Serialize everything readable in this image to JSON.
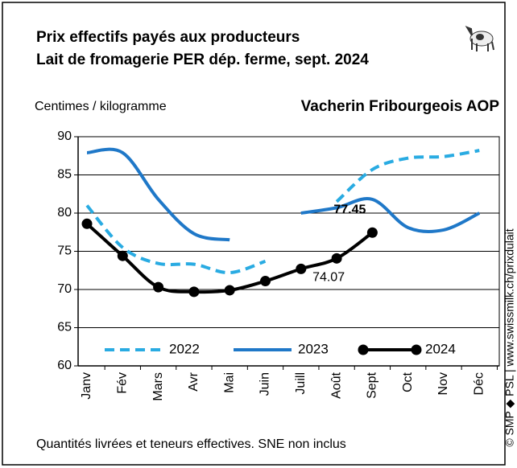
{
  "chart_data": {
    "type": "line",
    "title": [
      "Prix effectifs payés aux producteurs",
      "Lait de fromagerie PER dép. ferme, sept. 2024"
    ],
    "subtitle": "Vacherin Fribourgeois AOP",
    "y_label": "Centimes / kilogramme",
    "footnote": "Quantités livrées et teneurs effectives. SNE non inclus",
    "source": "© SMP ◆ PSL | www.swissmilk.ch/prixdulait",
    "categories": [
      "Janv",
      "Fév",
      "Mars",
      "Avr",
      "Mai",
      "Juin",
      "Juill",
      "Août",
      "Sept",
      "Oct",
      "Nov",
      "Déc"
    ],
    "series": [
      {
        "name": "2022",
        "color": "#29abe2",
        "dashed": true,
        "values": [
          81,
          75.5,
          73.4,
          73.3,
          72.2,
          73.7,
          null,
          81.5,
          85.7,
          87.2,
          87.4,
          88.2
        ]
      },
      {
        "name": "2023",
        "color": "#1f78c8",
        "values": [
          87.9,
          87.9,
          81.8,
          77.3,
          76.5,
          null,
          80,
          80.7,
          81.8,
          78.1,
          77.8,
          80
        ]
      },
      {
        "name": "2024",
        "color": "#000000",
        "markers": true,
        "values": [
          78.6,
          74.4,
          70.3,
          69.7,
          69.9,
          71.1,
          72.7,
          74.07,
          77.45,
          null,
          null,
          null
        ]
      }
    ],
    "ylim": [
      60,
      90
    ],
    "yticks": [
      60,
      65,
      70,
      75,
      80,
      85,
      90
    ],
    "grid": true,
    "legend": "bottom"
  }
}
